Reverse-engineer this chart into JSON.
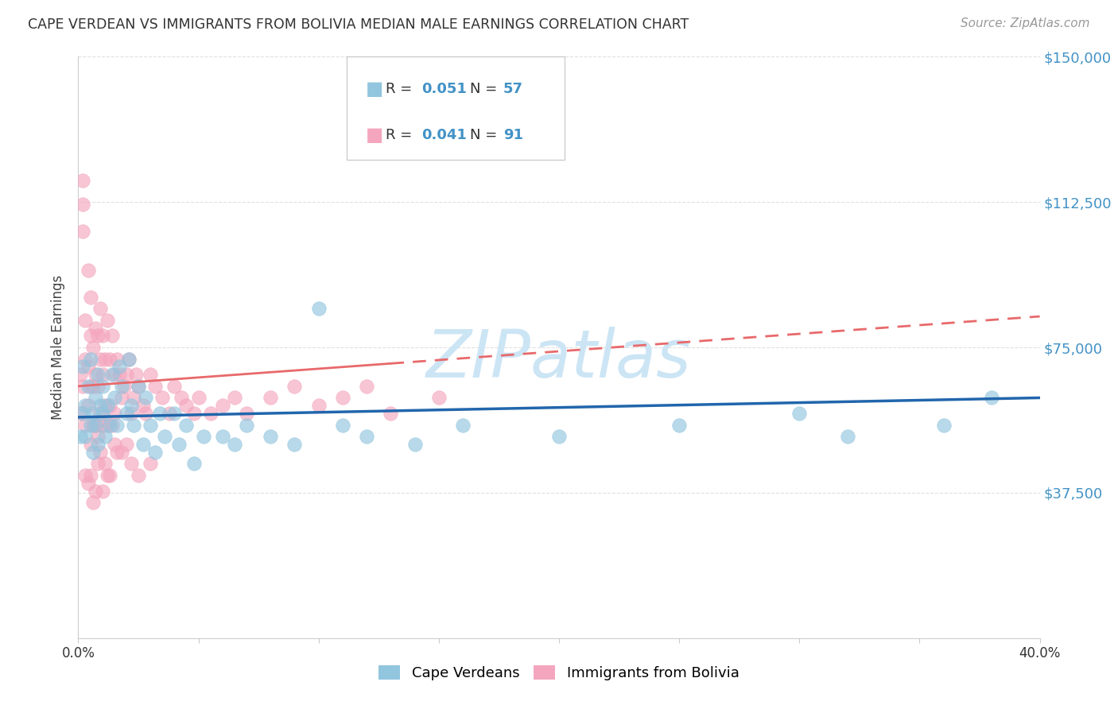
{
  "title": "CAPE VERDEAN VS IMMIGRANTS FROM BOLIVIA MEDIAN MALE EARNINGS CORRELATION CHART",
  "source": "Source: ZipAtlas.com",
  "ylabel": "Median Male Earnings",
  "legend_label_blue": "Cape Verdeans",
  "legend_label_pink": "Immigrants from Bolivia",
  "blue_color": "#92c5de",
  "pink_color": "#f4a6be",
  "blue_line_color": "#2166ac",
  "pink_line_color": "#e8696b",
  "axis_color": "#cccccc",
  "grid_color": "#e0e0e0",
  "title_color": "#333333",
  "source_color": "#999999",
  "yaxis_label_color": "#4292c6",
  "watermark_color": "#cce5f5",
  "legend_r_blue": "0.051",
  "legend_n_blue": "57",
  "legend_r_pink": "0.041",
  "legend_n_pink": "91",
  "xlim": [
    0.0,
    0.4
  ],
  "ylim": [
    0,
    150000
  ],
  "ytick_vals": [
    37500,
    75000,
    112500,
    150000
  ],
  "ytick_labels": [
    "$37,500",
    "$75,000",
    "$112,500",
    "$150,000"
  ],
  "blue_x": [
    0.001,
    0.002,
    0.002,
    0.003,
    0.003,
    0.004,
    0.005,
    0.005,
    0.006,
    0.006,
    0.007,
    0.007,
    0.008,
    0.008,
    0.009,
    0.01,
    0.01,
    0.011,
    0.012,
    0.013,
    0.014,
    0.015,
    0.016,
    0.017,
    0.018,
    0.02,
    0.021,
    0.022,
    0.023,
    0.025,
    0.027,
    0.028,
    0.03,
    0.032,
    0.034,
    0.036,
    0.04,
    0.042,
    0.045,
    0.048,
    0.052,
    0.06,
    0.065,
    0.07,
    0.08,
    0.09,
    0.1,
    0.11,
    0.12,
    0.14,
    0.16,
    0.2,
    0.25,
    0.3,
    0.32,
    0.36,
    0.38
  ],
  "blue_y": [
    52000,
    58000,
    70000,
    60000,
    52000,
    65000,
    55000,
    72000,
    58000,
    48000,
    62000,
    55000,
    68000,
    50000,
    60000,
    65000,
    58000,
    52000,
    60000,
    55000,
    68000,
    62000,
    55000,
    70000,
    65000,
    58000,
    72000,
    60000,
    55000,
    65000,
    50000,
    62000,
    55000,
    48000,
    58000,
    52000,
    58000,
    50000,
    55000,
    45000,
    52000,
    52000,
    50000,
    55000,
    52000,
    50000,
    85000,
    55000,
    52000,
    50000,
    55000,
    52000,
    55000,
    58000,
    52000,
    55000,
    62000
  ],
  "pink_x": [
    0.001,
    0.001,
    0.002,
    0.002,
    0.002,
    0.003,
    0.003,
    0.003,
    0.004,
    0.004,
    0.004,
    0.005,
    0.005,
    0.005,
    0.005,
    0.006,
    0.006,
    0.006,
    0.007,
    0.007,
    0.007,
    0.008,
    0.008,
    0.008,
    0.009,
    0.009,
    0.009,
    0.01,
    0.01,
    0.01,
    0.011,
    0.011,
    0.012,
    0.012,
    0.013,
    0.013,
    0.014,
    0.014,
    0.015,
    0.015,
    0.016,
    0.017,
    0.018,
    0.019,
    0.02,
    0.021,
    0.022,
    0.023,
    0.024,
    0.025,
    0.027,
    0.028,
    0.03,
    0.032,
    0.035,
    0.038,
    0.04,
    0.043,
    0.045,
    0.048,
    0.05,
    0.055,
    0.06,
    0.065,
    0.07,
    0.08,
    0.09,
    0.1,
    0.11,
    0.12,
    0.13,
    0.15,
    0.005,
    0.007,
    0.009,
    0.011,
    0.013,
    0.015,
    0.018,
    0.022,
    0.025,
    0.03,
    0.01,
    0.008,
    0.012,
    0.006,
    0.004,
    0.003,
    0.016,
    0.02,
    0.002
  ],
  "pink_y": [
    68000,
    58000,
    112000,
    118000,
    65000,
    82000,
    72000,
    55000,
    95000,
    70000,
    60000,
    88000,
    78000,
    65000,
    50000,
    75000,
    65000,
    55000,
    80000,
    68000,
    55000,
    78000,
    65000,
    52000,
    85000,
    72000,
    58000,
    78000,
    68000,
    55000,
    72000,
    60000,
    82000,
    55000,
    72000,
    60000,
    78000,
    55000,
    68000,
    58000,
    72000,
    68000,
    62000,
    65000,
    68000,
    72000,
    58000,
    62000,
    68000,
    65000,
    60000,
    58000,
    68000,
    65000,
    62000,
    58000,
    65000,
    62000,
    60000,
    58000,
    62000,
    58000,
    60000,
    62000,
    58000,
    62000,
    65000,
    60000,
    62000,
    65000,
    58000,
    62000,
    42000,
    38000,
    48000,
    45000,
    42000,
    50000,
    48000,
    45000,
    42000,
    45000,
    38000,
    45000,
    42000,
    35000,
    40000,
    42000,
    48000,
    50000,
    105000
  ]
}
